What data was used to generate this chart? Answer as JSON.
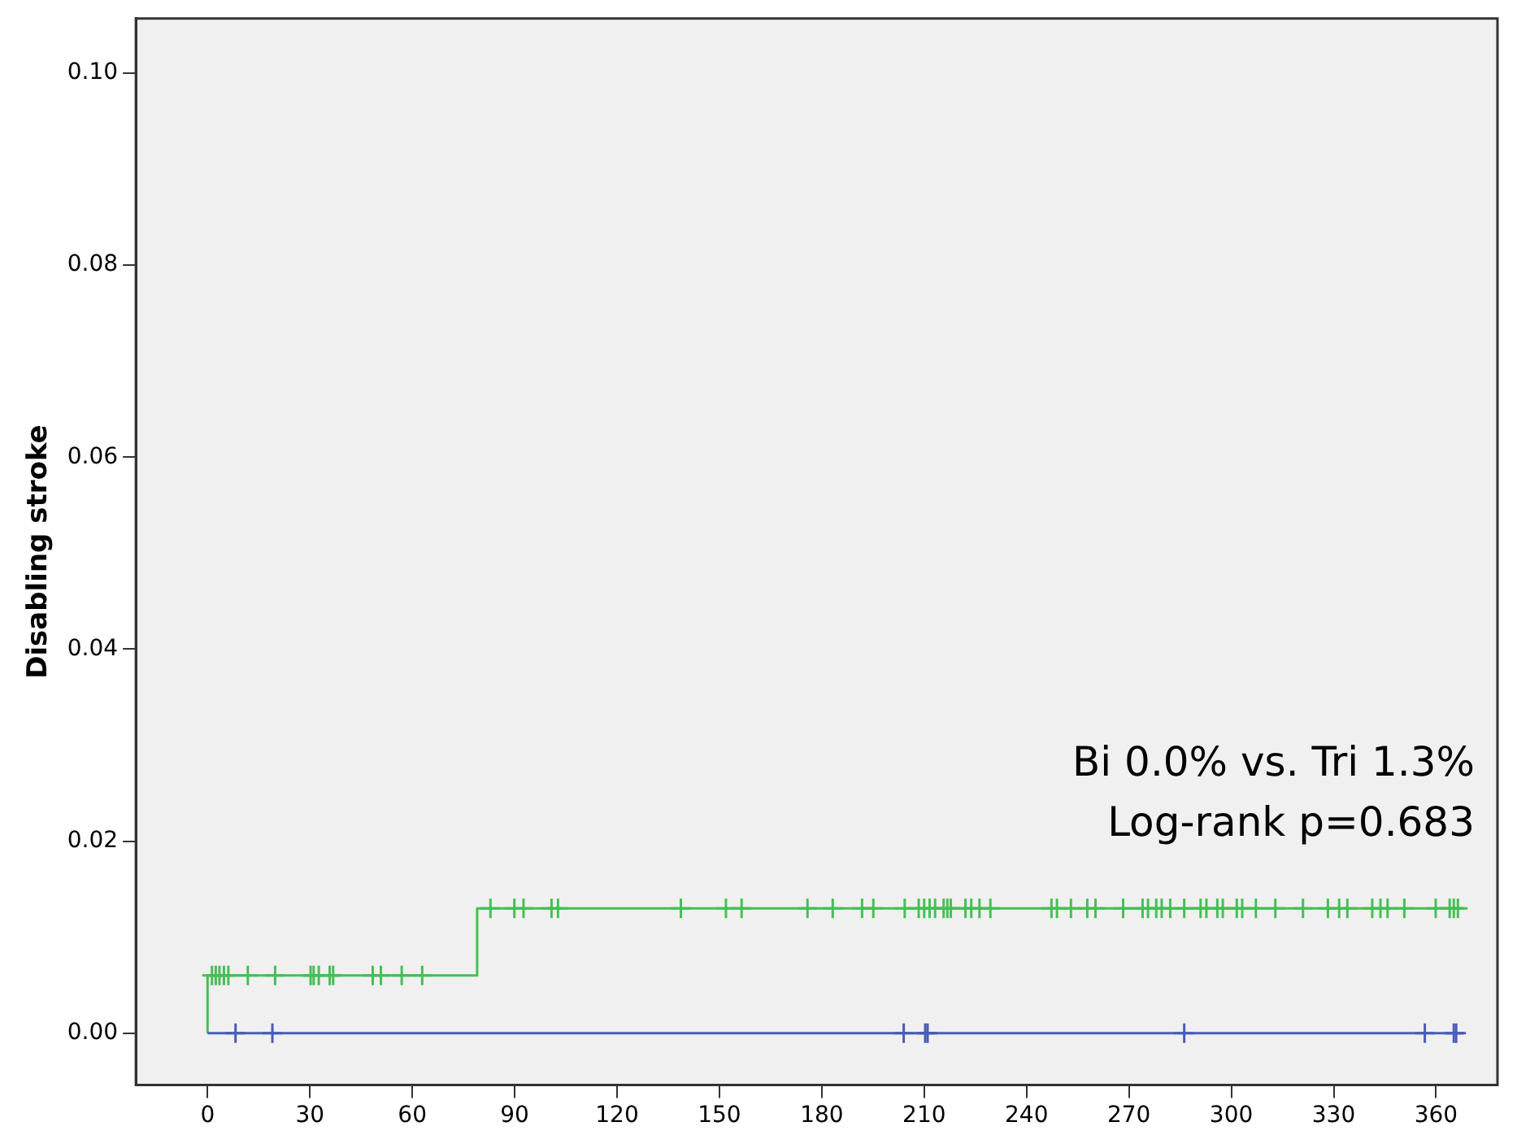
{
  "chart_data": {
    "type": "step",
    "ylabel": "Disabling stroke",
    "xlim": [
      -21,
      378
    ],
    "xticks": [
      0,
      30,
      60,
      90,
      120,
      150,
      180,
      210,
      240,
      270,
      300,
      330,
      360
    ],
    "ylim": [
      -0.0054,
      0.1057
    ],
    "yticks": [
      {
        "value": 0,
        "label": "0.00"
      },
      {
        "value": 0.02,
        "label": "0.02"
      },
      {
        "value": 0.04,
        "label": "0.04"
      },
      {
        "value": 0.06,
        "label": "0.06"
      },
      {
        "value": 0.08,
        "label": "0.08"
      },
      {
        "value": 0.1,
        "label": "0.10"
      }
    ],
    "grid": false,
    "legend": false,
    "annotations": [
      "Bi 0.0% vs. Tri 1.3%",
      "Log-rank p=0.683"
    ],
    "series": [
      {
        "type": "step",
        "color": "#4a5cb8",
        "marker": "none",
        "x": [
          0,
          368
        ],
        "values": [
          0,
          0
        ]
      },
      {
        "type": "step",
        "color": "#45bf55",
        "marker": "none",
        "x": [
          0,
          0,
          79,
          368
        ],
        "values": [
          0,
          0.006,
          0.013,
          0.013
        ]
      },
      {
        "type": "scatter",
        "color": "#4a5cb8",
        "marker": "cross",
        "x": [
          8.2,
          19,
          204,
          210.3,
          211,
          286.2,
          356.7,
          365.2,
          365.9
        ],
        "values": [
          0,
          0,
          0,
          0,
          0,
          0,
          0,
          0,
          0
        ]
      },
      {
        "type": "scatter",
        "color": "#45bf55",
        "marker": "cross",
        "x": [
          1.3,
          2.4,
          3.5,
          4.8,
          6.1,
          11.8,
          19.8,
          30.2,
          31.1,
          32.6,
          35.8,
          36.8,
          48.4,
          50.8,
          56.9,
          62.9
        ],
        "values": [
          0.006,
          0.006,
          0.006,
          0.006,
          0.006,
          0.006,
          0.006,
          0.006,
          0.006,
          0.006,
          0.006,
          0.006,
          0.006,
          0.006,
          0.006,
          0.006
        ]
      },
      {
        "type": "scatter",
        "color": "#45bf55",
        "marker": "cross",
        "x": [
          82.9,
          89.9,
          92.6,
          100.8,
          102.7,
          138.7,
          151.9,
          156.5,
          175.8,
          183.2,
          191.8,
          195.1,
          204.3,
          208.4,
          210,
          211.6,
          213.2,
          215.7,
          216.8,
          217.8,
          222.1,
          223.8,
          226.2,
          229.4,
          247.3,
          248.9,
          253,
          257.8,
          260.2,
          268.3,
          274,
          275.6,
          278,
          279.6,
          282.1,
          286.2,
          291,
          292.7,
          295.9,
          297.5,
          301.6,
          303.2,
          307.2,
          312.9,
          321,
          328.3,
          331.6,
          334,
          341.3,
          343.7,
          345.8,
          350.7,
          359.9,
          364,
          365.2,
          366.4
        ],
        "values": [
          0.013,
          0.013,
          0.013,
          0.013,
          0.013,
          0.013,
          0.013,
          0.013,
          0.013,
          0.013,
          0.013,
          0.013,
          0.013,
          0.013,
          0.013,
          0.013,
          0.013,
          0.013,
          0.013,
          0.013,
          0.013,
          0.013,
          0.013,
          0.013,
          0.013,
          0.013,
          0.013,
          0.013,
          0.013,
          0.013,
          0.013,
          0.013,
          0.013,
          0.013,
          0.013,
          0.013,
          0.013,
          0.013,
          0.013,
          0.013,
          0.013,
          0.013,
          0.013,
          0.013,
          0.013,
          0.013,
          0.013,
          0.013,
          0.013,
          0.013,
          0.013,
          0.013,
          0.013,
          0.013,
          0.013,
          0.013
        ]
      }
    ]
  }
}
